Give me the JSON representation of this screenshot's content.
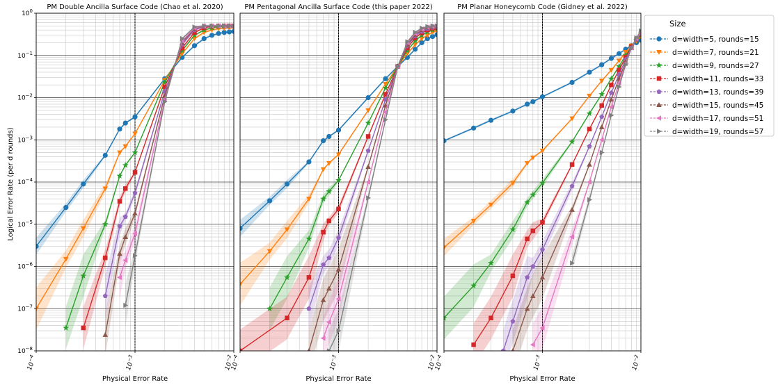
{
  "figure": {
    "ylabel": "Logical Error Rate (per d rounds)",
    "xlabel": "Physical Error Rate",
    "legend_title": "Size",
    "legend_placement": "outside-right"
  },
  "chart_data": [
    {
      "type": "line",
      "title": "PM Double Ancilla Surface Code (Chao et al. 2020)",
      "xlabel": "Physical Error Rate",
      "ylabel": "Logical Error Rate (per d rounds)",
      "xscale": "log",
      "yscale": "log",
      "xlim": [
        0.0001,
        0.01
      ],
      "ylim": [
        1e-08,
        1
      ],
      "threshold_marker": 0.001,
      "series": [
        {
          "name": "d=width=5, rounds=15",
          "x": [
            0.0001,
            0.0002,
            0.0003,
            0.0005,
            0.0007,
            0.0008,
            0.001,
            0.002,
            0.003,
            0.004,
            0.005,
            0.006,
            0.007,
            0.008,
            0.009,
            0.01
          ],
          "y": [
            3e-06,
            2.5e-05,
            9e-05,
            0.00043,
            0.0018,
            0.0025,
            0.0035,
            0.028,
            0.09,
            0.17,
            0.25,
            0.3,
            0.33,
            0.35,
            0.36,
            0.37
          ]
        },
        {
          "name": "d=width=7, rounds=21",
          "x": [
            0.0001,
            0.0002,
            0.0003,
            0.0005,
            0.0007,
            0.0008,
            0.001,
            0.002,
            0.003,
            0.004,
            0.005,
            0.006,
            0.007,
            0.008,
            0.009,
            0.01
          ],
          "y": [
            1e-07,
            1.5e-06,
            8e-06,
            7e-05,
            0.0005,
            0.0007,
            0.0014,
            0.026,
            0.11,
            0.25,
            0.35,
            0.4,
            0.43,
            0.44,
            0.45,
            0.45
          ]
        },
        {
          "name": "d=width=9, rounds=27",
          "x": [
            0.0002,
            0.0003,
            0.0005,
            0.0007,
            0.0008,
            0.001,
            0.002,
            0.003,
            0.004,
            0.005,
            0.006,
            0.007,
            0.008,
            0.009,
            0.01
          ],
          "y": [
            3.5e-08,
            6e-07,
            1e-05,
            0.00014,
            0.00025,
            0.0005,
            0.023,
            0.13,
            0.3,
            0.4,
            0.45,
            0.48,
            0.49,
            0.49,
            0.5
          ]
        },
        {
          "name": "d=width=11, rounds=33",
          "x": [
            0.0003,
            0.0005,
            0.0007,
            0.0008,
            0.001,
            0.002,
            0.003,
            0.004,
            0.005,
            0.006,
            0.007,
            0.008,
            0.009,
            0.01
          ],
          "y": [
            3.5e-08,
            1.6e-06,
            3.5e-05,
            7e-05,
            0.00017,
            0.018,
            0.15,
            0.35,
            0.45,
            0.49,
            0.5,
            0.5,
            0.5,
            0.5
          ]
        },
        {
          "name": "d=width=13, rounds=39",
          "x": [
            0.0005,
            0.0007,
            0.0008,
            0.001,
            0.002,
            0.003,
            0.004,
            0.005,
            0.006,
            0.007,
            0.008,
            0.009,
            0.01
          ],
          "y": [
            2e-07,
            9e-06,
            1.5e-05,
            5.5e-05,
            0.014,
            0.18,
            0.4,
            0.48,
            0.5,
            0.5,
            0.5,
            0.5,
            0.5
          ]
        },
        {
          "name": "d=width=15, rounds=45",
          "x": [
            0.0005,
            0.0007,
            0.0008,
            0.001,
            0.002,
            0.003,
            0.004,
            0.005,
            0.006,
            0.007,
            0.008,
            0.009,
            0.01
          ],
          "y": [
            2.4e-08,
            2e-06,
            5e-06,
            1.8e-05,
            0.011,
            0.2,
            0.43,
            0.5,
            0.5,
            0.5,
            0.5,
            0.5,
            0.5
          ]
        },
        {
          "name": "d=width=17, rounds=51",
          "x": [
            0.0007,
            0.0008,
            0.001,
            0.002,
            0.003,
            0.004,
            0.005,
            0.006,
            0.007,
            0.008,
            0.009,
            0.01
          ],
          "y": [
            5.5e-07,
            1.4e-06,
            6e-06,
            0.009,
            0.22,
            0.45,
            0.5,
            0.5,
            0.5,
            0.5,
            0.5,
            0.5
          ]
        },
        {
          "name": "d=width=19, rounds=57",
          "x": [
            0.0008,
            0.001,
            0.002,
            0.003,
            0.004,
            0.005,
            0.006,
            0.007,
            0.008,
            0.009,
            0.01
          ],
          "y": [
            1.2e-07,
            1.8e-06,
            0.008,
            0.25,
            0.47,
            0.5,
            0.5,
            0.5,
            0.5,
            0.5,
            0.5
          ]
        }
      ]
    },
    {
      "type": "line",
      "title": "PM Pentagonal Ancilla Surface Code (this paper 2022)",
      "xlabel": "Physical Error Rate",
      "ylabel": "",
      "xscale": "log",
      "yscale": "log",
      "xlim": [
        0.0001,
        0.01
      ],
      "ylim": [
        1e-08,
        1
      ],
      "threshold_marker": 0.001,
      "series": [
        {
          "name": "d=width=5, rounds=15",
          "x": [
            0.0001,
            0.0002,
            0.0003,
            0.0005,
            0.0007,
            0.0008,
            0.001,
            0.002,
            0.003,
            0.004,
            0.005,
            0.006,
            0.007,
            0.008,
            0.009,
            0.01
          ],
          "y": [
            8e-06,
            3.6e-05,
            9e-05,
            0.0003,
            0.00095,
            0.0012,
            0.0017,
            0.01,
            0.028,
            0.055,
            0.09,
            0.14,
            0.2,
            0.25,
            0.28,
            0.31
          ]
        },
        {
          "name": "d=width=7, rounds=21",
          "x": [
            0.0001,
            0.0002,
            0.0003,
            0.0005,
            0.0007,
            0.0008,
            0.001,
            0.002,
            0.003,
            0.004,
            0.005,
            0.006,
            0.007,
            0.008,
            0.009,
            0.01
          ],
          "y": [
            3.8e-07,
            2.3e-06,
            7.5e-06,
            4e-05,
            0.0002,
            0.00028,
            0.00045,
            0.005,
            0.021,
            0.055,
            0.11,
            0.18,
            0.25,
            0.3,
            0.35,
            0.38
          ]
        },
        {
          "name": "d=width=9, rounds=27",
          "x": [
            0.0002,
            0.0003,
            0.0005,
            0.0007,
            0.0008,
            0.001,
            0.002,
            0.003,
            0.004,
            0.005,
            0.006,
            0.007,
            0.008,
            0.009,
            0.01
          ],
          "y": [
            1e-07,
            5.5e-07,
            4.5e-06,
            4e-05,
            6e-05,
            0.00011,
            0.0025,
            0.017,
            0.055,
            0.13,
            0.22,
            0.3,
            0.36,
            0.4,
            0.43
          ]
        },
        {
          "name": "d=width=11, rounds=33",
          "x": [
            0.0001,
            0.0003,
            0.0005,
            0.0007,
            0.0008,
            0.001,
            0.002,
            0.003,
            0.004,
            0.005,
            0.006,
            0.007,
            0.008,
            0.009,
            0.01
          ],
          "y": [
            1e-08,
            6e-08,
            5.5e-07,
            6.5e-06,
            1.2e-05,
            2.3e-05,
            0.0012,
            0.012,
            0.055,
            0.15,
            0.26,
            0.34,
            0.4,
            0.44,
            0.46
          ]
        },
        {
          "name": "d=width=13, rounds=39",
          "x": [
            0.0005,
            0.0007,
            0.0008,
            0.001,
            0.002,
            0.003,
            0.004,
            0.005,
            0.006,
            0.007,
            0.008,
            0.009,
            0.01
          ],
          "y": [
            1e-07,
            1.1e-06,
            1.6e-06,
            4.8e-06,
            0.00055,
            0.009,
            0.055,
            0.17,
            0.29,
            0.37,
            0.43,
            0.46,
            0.48
          ]
        },
        {
          "name": "d=width=15, rounds=45",
          "x": [
            0.0005,
            0.0007,
            0.0008,
            0.001,
            0.002,
            0.003,
            0.004,
            0.005,
            0.006,
            0.007,
            0.008,
            0.009,
            0.01
          ],
          "y": [
            1e-08,
            1.6e-07,
            3e-07,
            8.5e-07,
            0.00023,
            0.0065,
            0.055,
            0.18,
            0.31,
            0.4,
            0.46,
            0.48,
            0.49
          ]
        },
        {
          "name": "d=width=17, rounds=51",
          "x": [
            0.0007,
            0.0008,
            0.001,
            0.002,
            0.003,
            0.004,
            0.005,
            0.006,
            0.007,
            0.008,
            0.009,
            0.01
          ],
          "y": [
            2e-08,
            4.8e-08,
            1.7e-07,
            0.0001,
            0.0045,
            0.055,
            0.2,
            0.33,
            0.42,
            0.47,
            0.49,
            0.5
          ]
        },
        {
          "name": "d=width=19, rounds=57",
          "x": [
            0.0008,
            0.001,
            0.002,
            0.003,
            0.004,
            0.005,
            0.006,
            0.007,
            0.008,
            0.009,
            0.01
          ],
          "y": [
            1e-08,
            3e-08,
            4.2e-05,
            0.003,
            0.055,
            0.21,
            0.35,
            0.44,
            0.48,
            0.5,
            0.5
          ]
        }
      ]
    },
    {
      "type": "line",
      "title": "PM Planar Honeycomb Code (Gidney et al. 2022)",
      "xlabel": "Physical Error Rate",
      "ylabel": "",
      "xscale": "log",
      "yscale": "log",
      "xlim": [
        0.0001,
        0.01
      ],
      "ylim": [
        1e-08,
        1
      ],
      "threshold_marker": 0.001,
      "series": [
        {
          "name": "d=width=5, rounds=15",
          "x": [
            0.0001,
            0.0002,
            0.0003,
            0.0005,
            0.0007,
            0.0008,
            0.001,
            0.002,
            0.003,
            0.004,
            0.005,
            0.006,
            0.007,
            0.008,
            0.009,
            0.01
          ],
          "y": [
            0.00095,
            0.0019,
            0.0029,
            0.0048,
            0.007,
            0.008,
            0.0105,
            0.023,
            0.04,
            0.06,
            0.085,
            0.11,
            0.14,
            0.17,
            0.2,
            0.23
          ]
        },
        {
          "name": "d=width=7, rounds=21",
          "x": [
            0.0001,
            0.0002,
            0.0003,
            0.0005,
            0.0007,
            0.0008,
            0.001,
            0.002,
            0.003,
            0.004,
            0.005,
            0.006,
            0.007,
            0.008,
            0.009,
            0.01
          ],
          "y": [
            2.8e-06,
            1.2e-05,
            2.9e-05,
            9.5e-05,
            0.00028,
            0.00038,
            0.00055,
            0.0032,
            0.011,
            0.025,
            0.045,
            0.075,
            0.12,
            0.17,
            0.22,
            0.28
          ]
        },
        {
          "name": "d=width=9, rounds=27",
          "x": [
            0.0001,
            0.0002,
            0.0003,
            0.0005,
            0.0007,
            0.0008,
            0.001,
            0.002,
            0.003,
            0.004,
            0.005,
            0.006,
            0.007,
            0.008,
            0.009,
            0.01
          ],
          "y": [
            6e-08,
            3.5e-07,
            1.2e-06,
            7.5e-06,
            3.3e-05,
            5e-05,
            9.5e-05,
            0.0009,
            0.0042,
            0.012,
            0.028,
            0.055,
            0.1,
            0.16,
            0.23,
            0.3
          ]
        },
        {
          "name": "d=width=11, rounds=33",
          "x": [
            0.0002,
            0.0003,
            0.0005,
            0.0007,
            0.0008,
            0.001,
            0.002,
            0.003,
            0.004,
            0.005,
            0.006,
            0.007,
            0.008,
            0.009,
            0.01
          ],
          "y": [
            1.4e-08,
            6e-08,
            6e-07,
            4.5e-06,
            7e-06,
            1.1e-05,
            0.00026,
            0.0018,
            0.0065,
            0.02,
            0.045,
            0.09,
            0.16,
            0.24,
            0.32
          ]
        },
        {
          "name": "d=width=13, rounds=39",
          "x": [
            0.0004,
            0.0005,
            0.0007,
            0.0008,
            0.001,
            0.002,
            0.003,
            0.004,
            0.005,
            0.006,
            0.007,
            0.008,
            0.009,
            0.01
          ],
          "y": [
            1e-08,
            5e-08,
            5.5e-07,
            1e-06,
            2.5e-06,
            8e-05,
            0.0007,
            0.0035,
            0.013,
            0.035,
            0.08,
            0.15,
            0.24,
            0.33
          ]
        },
        {
          "name": "d=width=15, rounds=45",
          "x": [
            0.0005,
            0.0007,
            0.0008,
            0.001,
            0.002,
            0.003,
            0.004,
            0.005,
            0.006,
            0.007,
            0.008,
            0.009,
            0.01
          ],
          "y": [
            1e-08,
            1e-07,
            2e-07,
            5.5e-07,
            2.2e-05,
            0.00026,
            0.002,
            0.009,
            0.028,
            0.07,
            0.15,
            0.25,
            0.35
          ]
        },
        {
          "name": "d=width=17, rounds=51",
          "x": [
            0.0008,
            0.001,
            0.002,
            0.003,
            0.004,
            0.005,
            0.006,
            0.007,
            0.008,
            0.009,
            0.01
          ],
          "y": [
            1.4e-08,
            3.5e-08,
            5e-06,
            0.0001,
            0.001,
            0.006,
            0.022,
            0.065,
            0.15,
            0.25,
            0.36
          ]
        },
        {
          "name": "d=width=19, rounds=57",
          "x": [
            0.002,
            0.003,
            0.004,
            0.005,
            0.006,
            0.007,
            0.008,
            0.009,
            0.01
          ],
          "y": [
            1.2e-06,
            3.8e-05,
            0.0005,
            0.0038,
            0.018,
            0.06,
            0.15,
            0.26,
            0.38
          ]
        }
      ]
    }
  ],
  "colors": [
    "#1f77b4",
    "#ff7f0e",
    "#2ca02c",
    "#d62728",
    "#9467bd",
    "#8c564b",
    "#e377c2",
    "#7f7f7f"
  ],
  "markers": [
    "circle",
    "triangle-down",
    "star",
    "square",
    "pentagon",
    "triangle-up",
    "triangle-left",
    "triangle-right"
  ]
}
